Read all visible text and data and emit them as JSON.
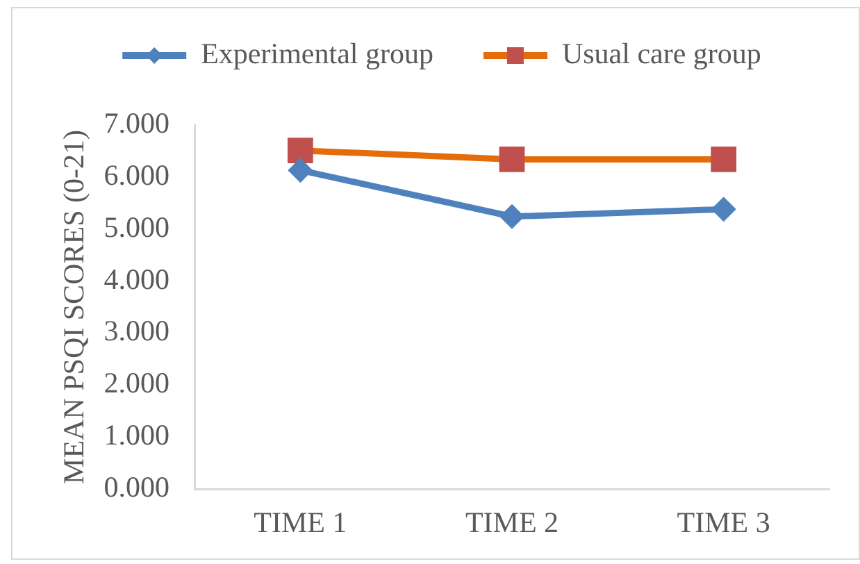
{
  "chart_data": {
    "type": "line",
    "ylabel": "MEAN PSQI SCORES (0-21)",
    "categories": [
      "TIME 1",
      "TIME 2",
      "TIME 3"
    ],
    "series": [
      {
        "name": "Experimental group",
        "color": "#4f81bd",
        "values": [
          6.13,
          5.24,
          5.38
        ],
        "marker": "diamond"
      },
      {
        "name": "Usual care group",
        "color": "#e46c0a",
        "colors": [
          "#c0504d",
          "#c0504d",
          "#c0504d"
        ],
        "values": [
          6.51,
          6.34,
          6.34
        ],
        "marker": "square"
      }
    ],
    "ylim": [
      0,
      7
    ],
    "yticks": [
      {
        "value": 0,
        "label": "0.000"
      },
      {
        "value": 1,
        "label": "1.000"
      },
      {
        "value": 2,
        "label": "2.000"
      },
      {
        "value": 3,
        "label": "3.000"
      },
      {
        "value": 4,
        "label": "4.000"
      },
      {
        "value": 5,
        "label": "5.000"
      },
      {
        "value": 6,
        "label": "6.000"
      },
      {
        "value": 7,
        "label": "7.000"
      }
    ],
    "grid": false,
    "legend": "top",
    "line_style": "solid"
  }
}
